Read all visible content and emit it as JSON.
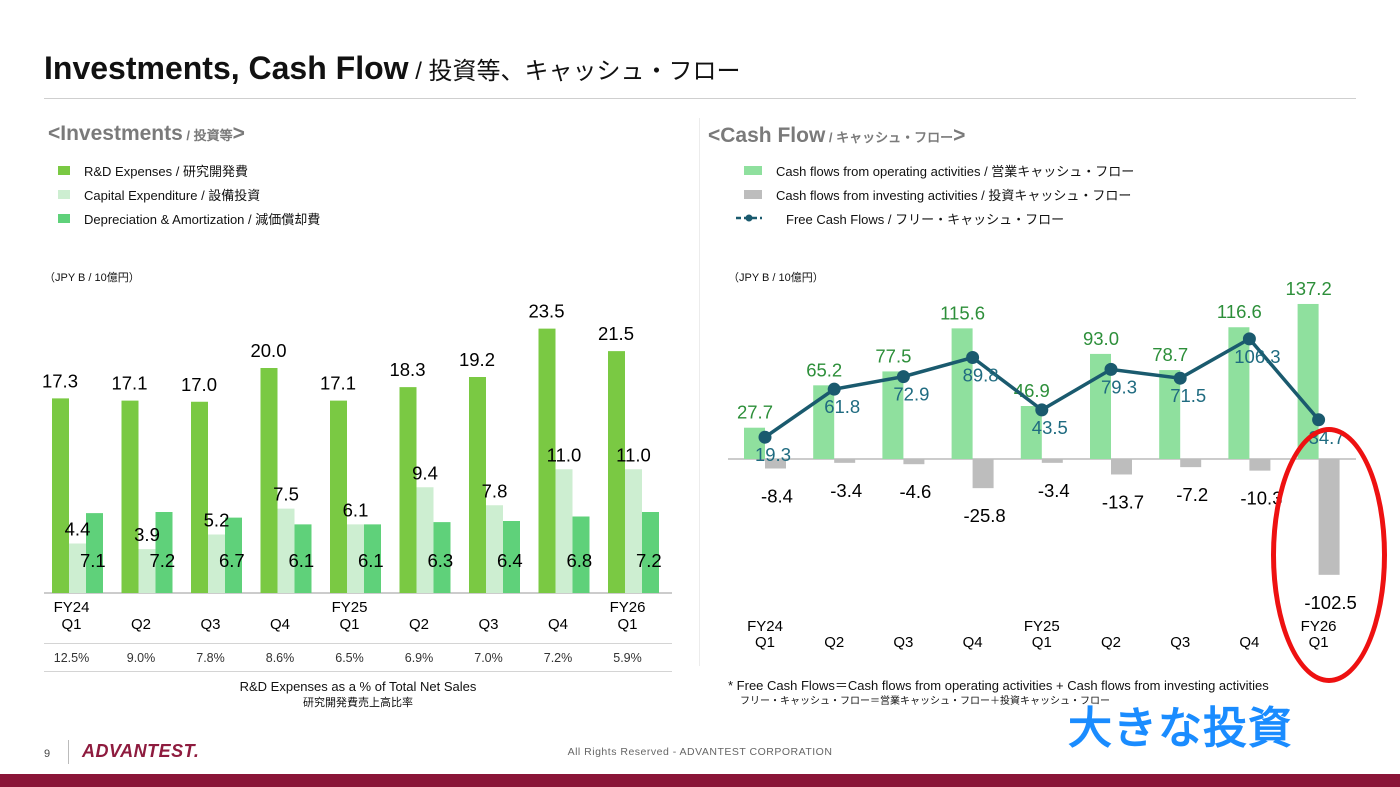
{
  "header": {
    "title_en": "Investments, Cash Flow",
    "title_jp": " / 投資等、キャッシュ・フロー"
  },
  "left": {
    "section_big": "<Investments",
    "section_small": " / 投資等",
    "section_close": ">",
    "unit": "（JPY B / 10億円）"
  },
  "right": {
    "section_big": "<Cash Flow",
    "section_small": " / キャッシュ・フロー",
    "section_close": ">",
    "unit": "（JPY B / 10億円）"
  },
  "ratio": {
    "values": [
      "12.5%",
      "9.0%",
      "7.8%",
      "8.6%",
      "6.5%",
      "6.9%",
      "7.0%",
      "7.2%",
      "5.9%"
    ],
    "caption_en": "R&D Expenses as a % of Total Net Sales",
    "caption_jp": "研究開発費売上高比率"
  },
  "note": {
    "line1": "* Free Cash Flows＝Cash flows from operating activities + Cash flows from investing activities",
    "line2": "フリー・キャッシュ・フロー＝営業キャッシュ・フロー＋投資キャッシュ・フロー"
  },
  "promo": "大きな投資",
  "footer": {
    "page": "9",
    "logo": "ADVANTEST.",
    "copyright": "All Rights Reserved - ADVANTEST CORPORATION"
  },
  "colors": {
    "rd": "#7ac943",
    "capex": "#cdeed1",
    "da": "#5fd17a",
    "op": "#8fe09e",
    "inv": "#bdbdbd",
    "fcf": "#1a5a6e",
    "green_label": "#2d8f3a",
    "fcf_label": "#1f6b80",
    "accent_ring": "#ee1111",
    "promo_text": "#1a8cff",
    "brand": "#8a1538"
  },
  "chart_data": [
    {
      "type": "bar",
      "categories": [
        "FY24\nQ1",
        "Q2",
        "Q3",
        "Q4",
        "FY25\nQ1",
        "Q2",
        "Q3",
        "Q4",
        "FY26\nQ1"
      ],
      "series": [
        {
          "name": "R&D Expenses / 研究開発費",
          "values": [
            17.3,
            17.1,
            17.0,
            20.0,
            17.1,
            18.3,
            19.2,
            23.5,
            21.5
          ]
        },
        {
          "name": "Capital Expenditure / 設備投資",
          "values": [
            4.4,
            3.9,
            5.2,
            7.5,
            6.1,
            9.4,
            7.8,
            11.0,
            11.0
          ]
        },
        {
          "name": "Depreciation & Amortization / 減価償却費",
          "values": [
            7.1,
            7.2,
            6.7,
            6.1,
            6.1,
            6.3,
            6.4,
            6.8,
            7.2
          ]
        }
      ],
      "ylim": [
        0,
        25
      ]
    },
    {
      "type": "bar",
      "categories": [
        "FY24\nQ1",
        "Q2",
        "Q3",
        "Q4",
        "FY25\nQ1",
        "Q2",
        "Q3",
        "Q4",
        "FY26\nQ1"
      ],
      "series": [
        {
          "name": "Cash flows from operating activities / 営業キャッシュ・フロー",
          "values": [
            27.7,
            65.2,
            77.5,
            115.6,
            46.9,
            93.0,
            78.7,
            116.6,
            137.2
          ]
        },
        {
          "name": "Cash flows from investing activities / 投資キャッシュ・フロー",
          "values": [
            -8.4,
            -3.4,
            -4.6,
            -25.8,
            -3.4,
            -13.7,
            -7.2,
            -10.3,
            -102.5
          ]
        },
        {
          "name": "Free Cash Flows / フリー・キャッシュ・フロー",
          "type": "line",
          "values": [
            19.3,
            61.8,
            72.9,
            89.8,
            43.5,
            79.3,
            71.5,
            106.3,
            34.7
          ]
        }
      ],
      "ylim": [
        -110,
        140
      ]
    }
  ]
}
